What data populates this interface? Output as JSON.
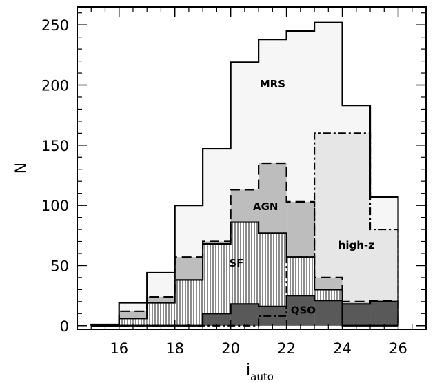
{
  "chart_data": {
    "type": "histogram",
    "xlabel": "i",
    "xlabel_subscript": "auto",
    "ylabel": "N",
    "xlim": [
      14.5,
      27
    ],
    "ylim": [
      -3,
      265
    ],
    "xticks": [
      16,
      18,
      20,
      22,
      24,
      26
    ],
    "yticks": [
      0,
      50,
      100,
      150,
      200,
      250
    ],
    "bin_edges": [
      15,
      16,
      17,
      18,
      19,
      20,
      21,
      22,
      23,
      24,
      25,
      26
    ],
    "grid": false,
    "series": [
      {
        "name": "MRS",
        "line": "solid",
        "fill": "#f6f6f6",
        "hatch": false,
        "values": [
          1,
          19,
          44,
          100,
          147,
          219,
          238,
          245,
          252,
          183,
          107
        ]
      },
      {
        "name": "high-z",
        "line": "dash-dot",
        "fill": "#e6e6e6",
        "hatch": false,
        "values": [
          0,
          0,
          0,
          0,
          0,
          0,
          8,
          57,
          160,
          160,
          80
        ]
      },
      {
        "name": "AGN",
        "line": "dashed",
        "fill": "#bdbdbd",
        "hatch": false,
        "values": [
          0,
          12,
          24,
          57,
          70,
          113,
          135,
          103,
          40,
          20,
          21
        ]
      },
      {
        "name": "SF",
        "line": "solid",
        "fill": "#ffffff",
        "hatch": true,
        "values": [
          0,
          6,
          19,
          38,
          68,
          86,
          77,
          57,
          30,
          0,
          0
        ]
      },
      {
        "name": "QSO",
        "line": "solid",
        "fill": "#595959",
        "hatch": false,
        "values": [
          0,
          0,
          0,
          0,
          10,
          18,
          16,
          25,
          21,
          18,
          20
        ]
      }
    ],
    "labels": [
      {
        "text": "MRS",
        "x": 21.5,
        "y": 198
      },
      {
        "text": "AGN",
        "x": 21.25,
        "y": 96
      },
      {
        "text": "SF",
        "x": 20.2,
        "y": 49
      },
      {
        "text": "high-z",
        "x": 24.5,
        "y": 64
      },
      {
        "text": "QSO",
        "x": 22.6,
        "y": 10
      }
    ]
  }
}
